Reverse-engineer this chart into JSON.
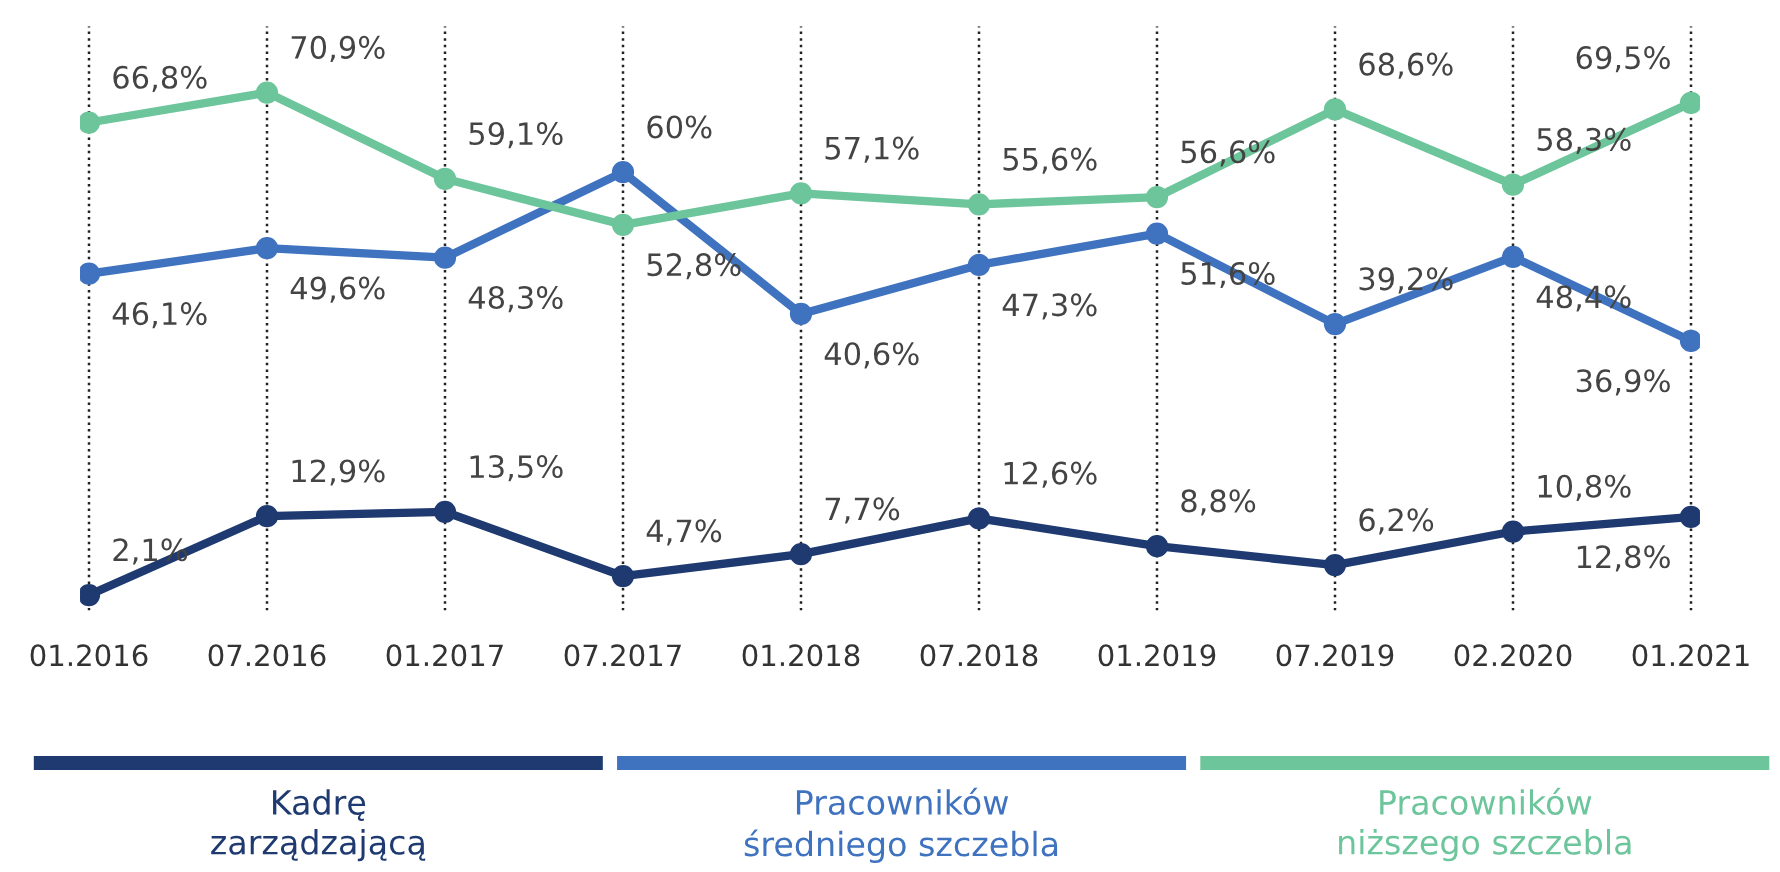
{
  "chart_data": {
    "type": "line",
    "categories": [
      "01.2016",
      "07.2016",
      "01.2017",
      "07.2017",
      "01.2018",
      "07.2018",
      "01.2019",
      "07.2019",
      "02.2020",
      "01.2021"
    ],
    "series": [
      {
        "name": "Kadrę zarządzającą",
        "color": "#1e3a70",
        "values": [
          2.1,
          12.9,
          13.5,
          4.7,
          7.7,
          12.6,
          8.8,
          6.2,
          10.8,
          12.8
        ],
        "value_labels": [
          "2,1%",
          "12,9%",
          "13,5%",
          "4,7%",
          "7,7%",
          "12,6%",
          "8,8%",
          "6,2%",
          "10,8%",
          "12,8%"
        ]
      },
      {
        "name": "Pracowników średniego szczebla",
        "color": "#3f72bf",
        "values": [
          46.1,
          49.6,
          48.3,
          60,
          40.6,
          47.3,
          51.6,
          39.2,
          48.4,
          36.9
        ],
        "value_labels": [
          "46,1%",
          "49,6%",
          "48,3%",
          "60%",
          "40,6%",
          "47,3%",
          "51,6%",
          "39,2%",
          "48,4%",
          "36,9%"
        ]
      },
      {
        "name": "Pracowników niższego szczebla",
        "color": "#6cc59b",
        "values": [
          66.8,
          70.9,
          59.1,
          52.8,
          57.1,
          55.6,
          56.6,
          68.6,
          58.3,
          69.5
        ],
        "value_labels": [
          "66,8%",
          "70,9%",
          "59,1%",
          "52,8%",
          "57,1%",
          "55,6%",
          "56,6%",
          "68,6%",
          "58,3%",
          "69,5%"
        ]
      }
    ],
    "ylim": [
      0,
      80
    ],
    "tick_labels": "x",
    "grid": "x",
    "legend": "bottom",
    "marker": "circle",
    "line_style": "solid"
  }
}
